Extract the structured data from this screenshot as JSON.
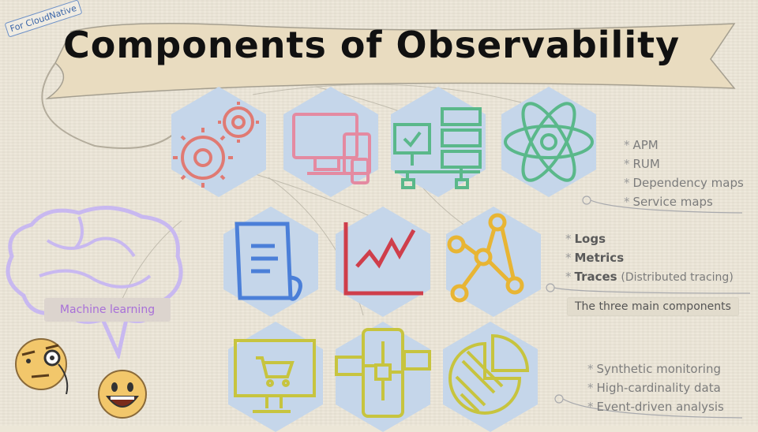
{
  "tag": "For CloudNative",
  "title": "Components of Observability",
  "apm_list": [
    "APM",
    "RUM",
    "Dependency maps",
    "Service maps"
  ],
  "main_components": {
    "logs": "Logs",
    "metrics": "Metrics",
    "traces": "Traces",
    "traces_note": "(Distributed tracing)",
    "caption": "The three main components"
  },
  "bottom_list": [
    "Synthetic monitoring",
    "High-cardinality data",
    "Event-driven analysis"
  ],
  "machine_learning": "Machine learning",
  "bullet": "*",
  "colors": {
    "hex_fill": "#c5d6ea",
    "red": "#e07a73",
    "pink": "#e48aa1",
    "green": "#5ab88a",
    "blue": "#4b7fd8",
    "crimson": "#cf3e4b",
    "yellow": "#e8b534",
    "olive": "#c7c43f",
    "brain": "#c8b8f0",
    "ml_text": "#a870d8"
  },
  "icons": [
    "gears-icon",
    "devices-icon",
    "server-network-icon",
    "atom-icon",
    "log-document-icon",
    "metrics-chart-icon",
    "trace-graph-icon",
    "cart-monitor-icon",
    "mobile-flow-icon",
    "pie-chart-icon",
    "brain-icon",
    "monocle-face-icon",
    "grinning-face-icon"
  ]
}
